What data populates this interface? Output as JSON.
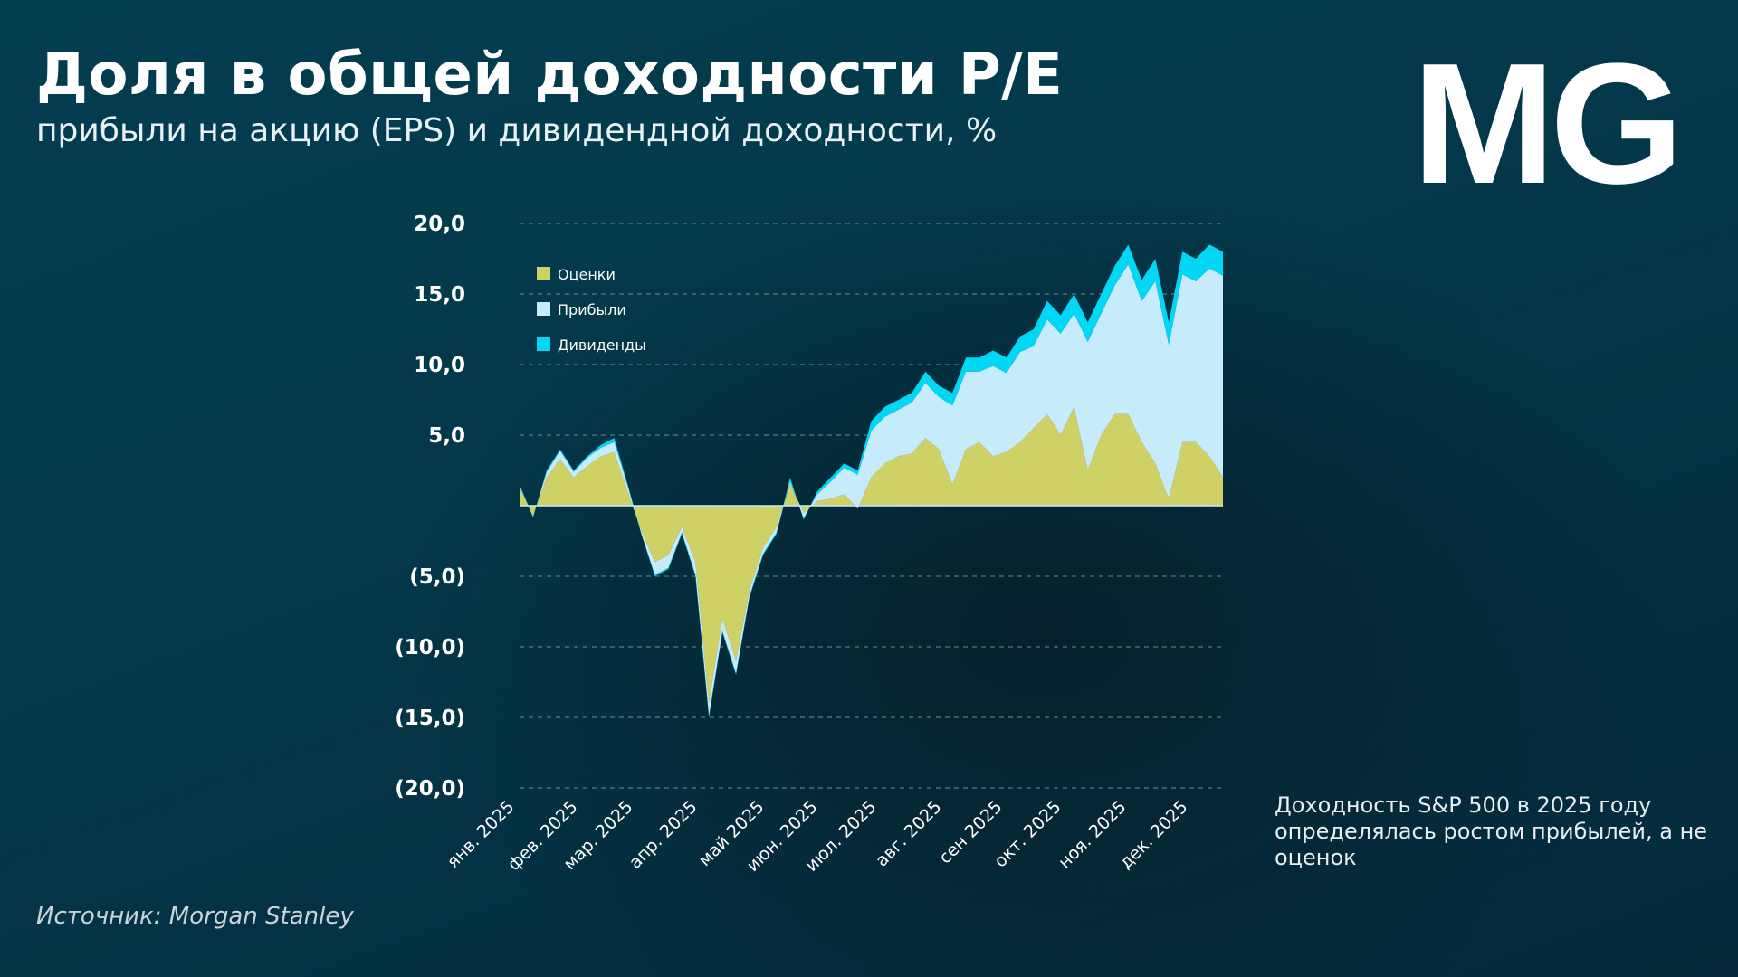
{
  "header": {
    "title": "Доля в общей доходности P/E",
    "subtitle": "прибыли на акцию (EPS) и дивидендной доходности, %"
  },
  "logo": "MG",
  "source": "Источник: Morgan Stanley",
  "note": "Доходность S&P 500 в 2025 году определялась ростом прибылей, а не оценок",
  "chart_data": {
    "type": "area",
    "stacked": true,
    "ylim": [
      -20,
      20
    ],
    "grid": true,
    "legend_placement": "top-left",
    "yticks": [
      {
        "v": 20,
        "label": "20,0"
      },
      {
        "v": 15,
        "label": "15,0"
      },
      {
        "v": 10,
        "label": "10,0"
      },
      {
        "v": 5,
        "label": "5,0"
      },
      {
        "v": -5,
        "label": "(5,0)"
      },
      {
        "v": -10,
        "label": "(10,0)"
      },
      {
        "v": -15,
        "label": "(15,0)"
      },
      {
        "v": -20,
        "label": "(20,0)"
      }
    ],
    "xticks": [
      "янв. 2025",
      "фев. 2025",
      "мар. 2025",
      "апр. 2025",
      "май 2025",
      "июн. 2025",
      "июл. 2025",
      "авг. 2025",
      "сен 2025",
      "окт. 2025",
      "ноя. 2025",
      "дек. 2025"
    ],
    "colors": {
      "valuation": "#cfd166",
      "earnings": "#c6ecfc",
      "dividends": "#00d6f5"
    },
    "series": [
      {
        "name": "Оценки",
        "key": "valuation",
        "values": [
          1.3,
          -0.7,
          2,
          3.3,
          2,
          2.8,
          3.5,
          3.8,
          1,
          -1.8,
          -4,
          -3.5,
          -1.5,
          -4,
          -14,
          -8,
          -11,
          -6,
          -3,
          -1.5,
          1.5,
          -0.5,
          0.3,
          0.5,
          0.8,
          -0.2,
          2,
          3,
          3.5,
          3.7,
          4.8,
          4,
          1.5,
          4,
          4.5,
          3.5,
          3.8,
          4.5,
          5.5,
          6.5,
          5,
          7,
          2.5,
          5,
          6.5,
          6.5,
          4.5,
          3,
          0.5,
          4.5,
          4.5,
          3.5,
          2
        ]
      },
      {
        "name": "Прибыли",
        "key": "earnings",
        "values": [
          0.1,
          -0.1,
          0.4,
          0.6,
          0.4,
          0.6,
          0.6,
          0.7,
          0.4,
          -0.2,
          -0.9,
          -0.9,
          -0.4,
          -0.9,
          -0.9,
          -0.9,
          -0.9,
          -0.4,
          -0.4,
          -0.4,
          0.2,
          -0.4,
          0.5,
          1.2,
          1.9,
          2.4,
          3.3,
          3.3,
          3.3,
          3.6,
          3.9,
          3.7,
          5.6,
          5.5,
          5,
          6.4,
          5.6,
          6.4,
          5.8,
          6.7,
          7.2,
          6.6,
          9.1,
          8.6,
          9.1,
          10.6,
          10,
          12.9,
          10.9,
          11.9,
          11.4,
          13.3,
          14.3
        ]
      },
      {
        "name": "Дивиденды",
        "key": "dividends",
        "values": [
          0.1,
          0,
          0.1,
          0.1,
          0.1,
          0.1,
          0.2,
          0.3,
          0.1,
          0,
          -0.1,
          -0.1,
          -0.1,
          -0.1,
          -0.1,
          -0.1,
          -0.1,
          -0.1,
          -0.1,
          -0.1,
          0.3,
          -0.1,
          0.2,
          0.3,
          0.3,
          0.3,
          0.7,
          0.7,
          0.7,
          0.7,
          0.8,
          0.8,
          0.9,
          1,
          1,
          1.1,
          1.1,
          1.1,
          1.2,
          1.3,
          1.3,
          1.4,
          1.4,
          1.4,
          1.4,
          1.4,
          1.5,
          1.6,
          1.6,
          1.6,
          1.6,
          1.7,
          1.7
        ]
      }
    ]
  }
}
